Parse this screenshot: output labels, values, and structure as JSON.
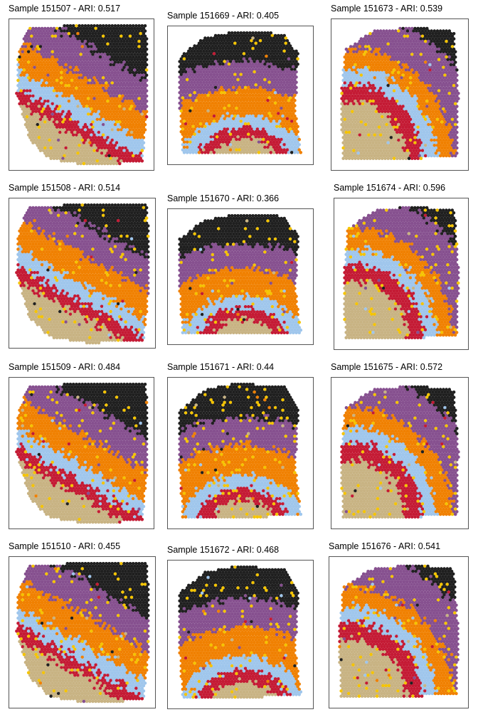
{
  "palette": {
    "black": "#1f1f1f",
    "purple": "#86508f",
    "orange": "#f08000",
    "light_blue": "#9fc6ec",
    "red": "#c41a34",
    "tan": "#c8b383",
    "yellow": "#f5c400"
  },
  "panels": [
    {
      "title": "Sample 151507 - ARI: 0.517",
      "shape": "a"
    },
    {
      "title": "Sample 151669 - ARI: 0.405",
      "shape": "b"
    },
    {
      "title": "Sample 151673 - ARI: 0.539",
      "shape": "c"
    },
    {
      "title": "Sample 151508 - ARI: 0.514",
      "shape": "a"
    },
    {
      "title": "Sample 151670 - ARI: 0.366",
      "shape": "b"
    },
    {
      "title": "Sample 151674 - ARI: 0.596",
      "shape": "c"
    },
    {
      "title": "Sample 151509 - ARI: 0.484",
      "shape": "a"
    },
    {
      "title": "Sample 151671 - ARI: 0.44",
      "shape": "b"
    },
    {
      "title": "Sample 151675 - ARI: 0.572",
      "shape": "c"
    },
    {
      "title": "Sample 151510 - ARI: 0.455",
      "shape": "a"
    },
    {
      "title": "Sample 151672 - ARI: 0.468",
      "shape": "b"
    },
    {
      "title": "Sample 151676 - ARI: 0.541",
      "shape": "c"
    }
  ]
}
